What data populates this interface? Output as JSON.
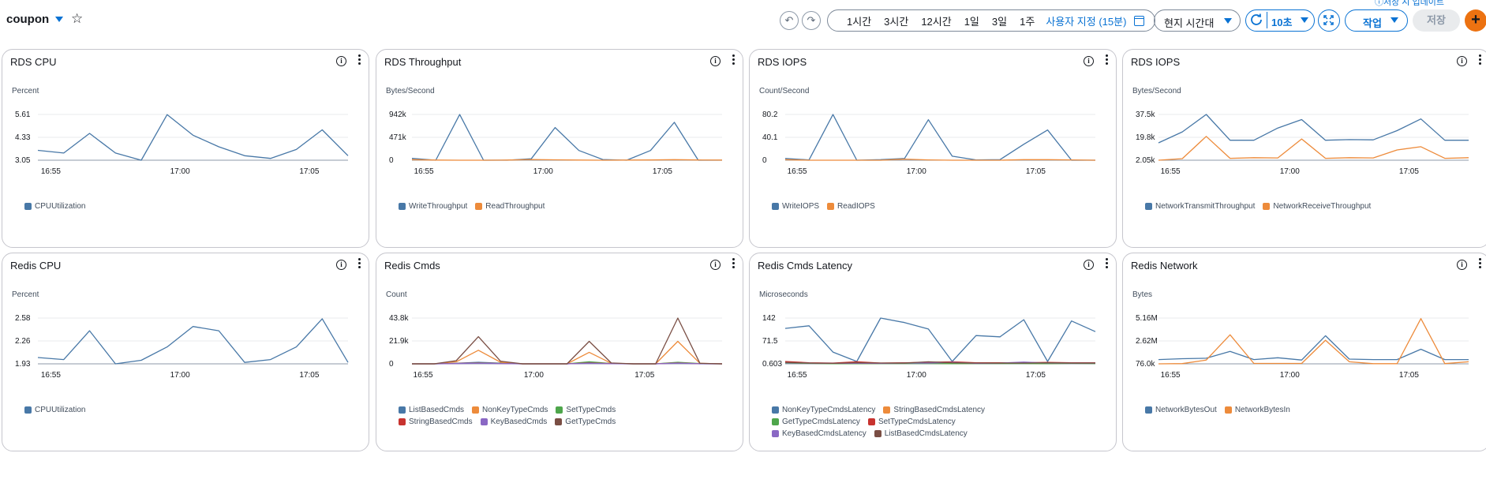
{
  "header": {
    "title": "coupon",
    "top_link": "ⓘ저장 시 업데이트",
    "ranges": [
      "1시간",
      "3시간",
      "12시간",
      "1일",
      "3일",
      "1주"
    ],
    "custom_range": "사용자 지정 (15분)",
    "timezone": "현지 시간대",
    "refresh": "10초",
    "actions_label": "작업",
    "save_label": "저장",
    "add_label": "+",
    "icons": {
      "undo": "undo-icon",
      "redo": "redo-icon",
      "calendar": "calendar-icon",
      "refresh": "refresh-icon",
      "expand": "expand-icon",
      "star": "star-icon"
    }
  },
  "colors": {
    "accent": "#0972d3",
    "blue": "#4878a7",
    "orange": "#ed8b3b",
    "green": "#4ea64b",
    "red": "#c8332f",
    "purple": "#8a68c4",
    "brown": "#7a4e44",
    "add_button": "#ec7211"
  },
  "widgets": [
    {
      "title": "RDS CPU",
      "unit": "Percent",
      "chart_data": {
        "type": "line",
        "x_ticks": [
          "16:55",
          "17:00",
          "17:05"
        ],
        "x_tick_pos": [
          0.5,
          5.5,
          10.5
        ],
        "y_ticks": [
          "5.61",
          "4.33",
          "3.05"
        ],
        "y_min": 3.05,
        "y_max": 5.61,
        "series": [
          {
            "name": "CPUUtilization",
            "color": "#4878a7",
            "values": [
              3.6,
              3.45,
              4.55,
              3.45,
              3.05,
              5.6,
              4.45,
              3.8,
              3.3,
              3.15,
              3.65,
              4.75,
              3.3
            ]
          }
        ]
      }
    },
    {
      "title": "RDS Throughput",
      "unit": "Bytes/Second",
      "chart_data": {
        "type": "line",
        "x_ticks": [
          "16:55",
          "17:00",
          "17:05"
        ],
        "x_tick_pos": [
          0.5,
          5.5,
          10.5
        ],
        "y_ticks": [
          "942k",
          "471k",
          "0"
        ],
        "y_min": 0,
        "y_max": 942000,
        "series": [
          {
            "name": "WriteThroughput",
            "color": "#4878a7",
            "values": [
              38000,
              0,
              940000,
              0,
              0,
              30000,
              672000,
              200000,
              15000,
              0,
              200000,
              780000,
              0,
              0
            ]
          },
          {
            "name": "ReadThroughput",
            "color": "#ed8b3b",
            "values": [
              12000,
              3000,
              0,
              0,
              3000,
              15000,
              8000,
              3000,
              0,
              3000,
              5000,
              12000,
              5000,
              3000
            ]
          }
        ]
      }
    },
    {
      "title": "RDS IOPS",
      "unit": "Count/Second",
      "chart_data": {
        "type": "line",
        "x_ticks": [
          "16:55",
          "17:00",
          "17:05"
        ],
        "x_tick_pos": [
          0.5,
          5.5,
          10.5
        ],
        "y_ticks": [
          "80.2",
          "40.1",
          "0"
        ],
        "y_min": 0,
        "y_max": 80.2,
        "series": [
          {
            "name": "WriteIOPS",
            "color": "#4878a7",
            "values": [
              3,
              0.5,
              80,
              0,
              1,
              3,
              71,
              7,
              0.5,
              1,
              28,
              53,
              0,
              0
            ]
          },
          {
            "name": "ReadIOPS",
            "color": "#ed8b3b",
            "values": [
              1,
              0,
              0,
              0,
              0,
              2,
              0.5,
              0,
              0,
              0,
              1,
              1,
              0.5,
              0
            ]
          }
        ]
      }
    },
    {
      "title": "RDS IOPS",
      "unit": "Bytes/Second",
      "chart_data": {
        "type": "line",
        "x_ticks": [
          "16:55",
          "17:00",
          "17:05"
        ],
        "x_tick_pos": [
          0.5,
          5.5,
          10.5
        ],
        "y_ticks": [
          "37.5k",
          "19.8k",
          "2.05k"
        ],
        "y_min": 2050,
        "y_max": 37500,
        "series": [
          {
            "name": "NetworkTransmitThroughput",
            "color": "#4878a7",
            "values": [
              15500,
              24000,
              37500,
              17500,
              17500,
              27000,
              33500,
              17500,
              18000,
              17800,
              25000,
              34000,
              17500,
              17500
            ]
          },
          {
            "name": "NetworkReceiveThroughput",
            "color": "#ed8b3b",
            "values": [
              2050,
              3300,
              20500,
              3500,
              4000,
              3800,
              18500,
              3500,
              4000,
              3800,
              10000,
              12500,
              3500,
              4000
            ]
          }
        ]
      }
    },
    {
      "title": "Redis CPU",
      "unit": "Percent",
      "chart_data": {
        "type": "line",
        "x_ticks": [
          "16:55",
          "17:00",
          "17:05"
        ],
        "x_tick_pos": [
          0.5,
          5.5,
          10.5
        ],
        "y_ticks": [
          "2.58",
          "2.26",
          "1.93"
        ],
        "y_min": 1.93,
        "y_max": 2.58,
        "series": [
          {
            "name": "CPUUtilization",
            "color": "#4878a7",
            "values": [
              2.02,
              1.99,
              2.4,
              1.93,
              1.98,
              2.17,
              2.46,
              2.4,
              1.95,
              1.99,
              2.17,
              2.57,
              1.95
            ]
          }
        ]
      }
    },
    {
      "title": "Redis Cmds",
      "unit": "Count",
      "chart_data": {
        "type": "line",
        "x_ticks": [
          "16:55",
          "17:00",
          "17:05"
        ],
        "x_tick_pos": [
          0.5,
          5.5,
          10.5
        ],
        "y_ticks": [
          "43.8k",
          "21.9k",
          "0"
        ],
        "y_min": 0,
        "y_max": 43800,
        "series": [
          {
            "name": "ListBasedCmds",
            "color": "#4878a7",
            "values": [
              0,
              0,
              500,
              1500,
              600,
              0,
              0,
              0,
              1000,
              200,
              0,
              0,
              1000,
              0,
              0
            ]
          },
          {
            "name": "NonKeyTypeCmds",
            "color": "#ed8b3b",
            "values": [
              0,
              0,
              2000,
              13000,
              1500,
              0,
              0,
              0,
              11000,
              500,
              0,
              0,
              21500,
              500,
              0
            ]
          },
          {
            "name": "SetTypeCmds",
            "color": "#4ea64b",
            "values": [
              0,
              0,
              300,
              1000,
              400,
              0,
              0,
              0,
              2000,
              300,
              0,
              0,
              1500,
              200,
              0
            ]
          },
          {
            "name": "StringBasedCmds",
            "color": "#c8332f",
            "values": [
              0,
              0,
              400,
              800,
              300,
              0,
              0,
              0,
              800,
              200,
              0,
              0,
              800,
              100,
              0
            ]
          },
          {
            "name": "KeyBasedCmds",
            "color": "#8a68c4",
            "values": [
              0,
              0,
              200,
              600,
              200,
              0,
              0,
              0,
              500,
              100,
              0,
              0,
              600,
              100,
              0
            ]
          },
          {
            "name": "GetTypeCmds",
            "color": "#7a4e44",
            "values": [
              0,
              0,
              3000,
              26000,
              2500,
              0,
              0,
              0,
              21500,
              800,
              0,
              0,
              43800,
              500,
              0
            ]
          }
        ]
      }
    },
    {
      "title": "Redis Cmds Latency",
      "unit": "Microseconds",
      "chart_data": {
        "type": "line",
        "x_ticks": [
          "16:55",
          "17:00",
          "17:05"
        ],
        "x_tick_pos": [
          0.5,
          5.5,
          10.5
        ],
        "y_ticks": [
          "142",
          "71.5",
          "0.603"
        ],
        "y_min": 0.603,
        "y_max": 142,
        "series": [
          {
            "name": "NonKeyTypeCmdsLatency",
            "color": "#4878a7",
            "values": [
              110,
              118,
              37,
              8,
              142,
              128,
              108,
              8,
              88,
              84,
              137,
              8,
              133,
              100
            ]
          },
          {
            "name": "StringBasedCmdsLatency",
            "color": "#ed8b3b",
            "values": [
              6,
              3,
              2,
              1,
              2,
              2,
              2,
              1,
              2,
              2,
              2,
              1,
              3,
              2
            ]
          },
          {
            "name": "GetTypeCmdsLatency",
            "color": "#4ea64b",
            "values": [
              3,
              2,
              1,
              1,
              1.5,
              1.5,
              1.5,
              1,
              1.5,
              1.5,
              1.5,
              1,
              2,
              1.5
            ]
          },
          {
            "name": "SetTypeCmdsLatency",
            "color": "#c8332f",
            "values": [
              8,
              4,
              3,
              7,
              3,
              4,
              5,
              7,
              4,
              4,
              4,
              5,
              4,
              4
            ]
          },
          {
            "name": "KeyBasedCmdsLatency",
            "color": "#8a68c4",
            "values": [
              4,
              3,
              2,
              2,
              2,
              3,
              3,
              5,
              2,
              3,
              6,
              3,
              3,
              3
            ]
          },
          {
            "name": "ListBasedCmdsLatency",
            "color": "#7a4e44",
            "values": [
              5,
              3,
              2,
              4,
              3,
              3,
              7,
              4,
              3,
              3,
              3,
              4,
              3,
              3
            ]
          }
        ]
      }
    },
    {
      "title": "Redis Network",
      "unit": "Bytes",
      "chart_data": {
        "type": "line",
        "x_ticks": [
          "16:55",
          "17:00",
          "17:05"
        ],
        "x_tick_pos": [
          0.5,
          5.5,
          10.5
        ],
        "y_ticks": [
          "5.16M",
          "2.62M",
          "76.0k"
        ],
        "y_min": 76000,
        "y_max": 5160000,
        "series": [
          {
            "name": "NetworkBytesOut",
            "color": "#4878a7",
            "values": [
              550000,
              650000,
              700000,
              1450000,
              550000,
              750000,
              500000,
              3200000,
              600000,
              550000,
              550000,
              1700000,
              550000,
              550000
            ]
          },
          {
            "name": "NetworkBytesIn",
            "color": "#ed8b3b",
            "values": [
              76000,
              100000,
              500000,
              3300000,
              120000,
              120000,
              120000,
              2700000,
              300000,
              90000,
              90000,
              5100000,
              100000,
              300000
            ]
          }
        ]
      }
    }
  ]
}
